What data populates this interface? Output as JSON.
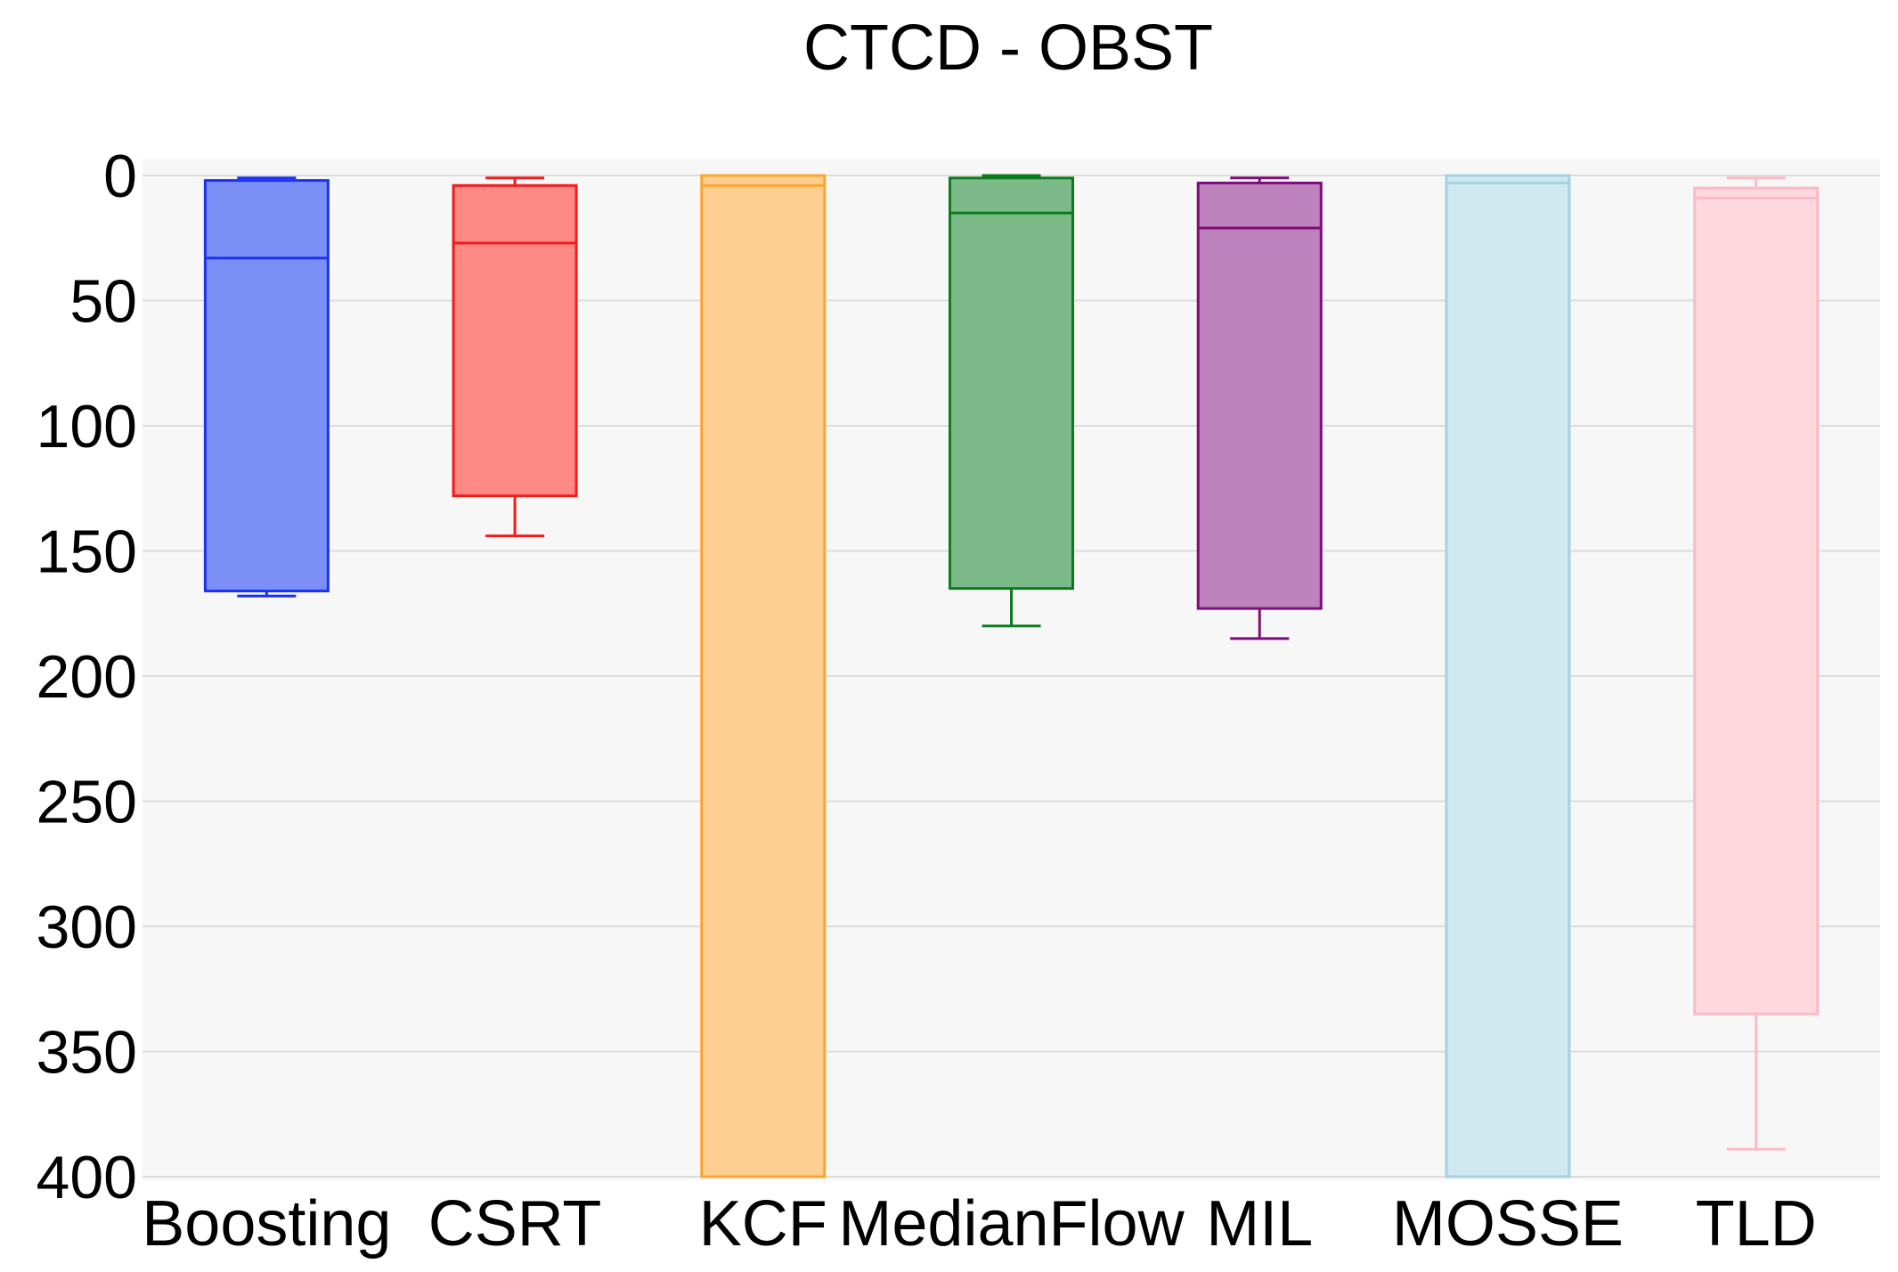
{
  "chart_data": {
    "type": "box",
    "title": "CTCD - OBST",
    "xlabel": "",
    "ylabel": "",
    "y_axis_inverted": true,
    "ylim": [
      0,
      400
    ],
    "yticks": [
      0,
      50,
      100,
      150,
      200,
      250,
      300,
      350,
      400
    ],
    "grid": "horizontal",
    "categories": [
      "Boosting",
      "CSRT",
      "KCF",
      "MedianFlow",
      "MIL",
      "MOSSE",
      "TLD"
    ],
    "boxes": [
      {
        "name": "Boosting",
        "whisker_low": 1,
        "q1": 2,
        "median": 33,
        "q3": 166,
        "whisker_high": 168,
        "fill": "#7B8FF7",
        "stroke": "#1A32F0"
      },
      {
        "name": "CSRT",
        "whisker_low": 1,
        "q1": 4,
        "median": 27,
        "q3": 128,
        "whisker_high": 144,
        "fill": "#FF8A85",
        "stroke": "#F21B1B"
      },
      {
        "name": "KCF",
        "whisker_low": 0,
        "q1": 0,
        "median": 4,
        "q3": 400,
        "whisker_high": 400,
        "fill": "#FECF91",
        "stroke": "#FBA431"
      },
      {
        "name": "MedianFlow",
        "whisker_low": 0,
        "q1": 1,
        "median": 15,
        "q3": 165,
        "whisker_high": 180,
        "fill": "#7CBA8A",
        "stroke": "#0E7A1E"
      },
      {
        "name": "MIL",
        "whisker_low": 1,
        "q1": 3,
        "median": 21,
        "q3": 173,
        "whisker_high": 185,
        "fill": "#BE83BC",
        "stroke": "#7D0E7B"
      },
      {
        "name": "MOSSE",
        "whisker_low": 0,
        "q1": 0,
        "median": 3,
        "q3": 400,
        "whisker_high": 400,
        "fill": "#D0E8EF",
        "stroke": "#A4D2E0"
      },
      {
        "name": "TLD",
        "whisker_low": 1,
        "q1": 5,
        "median": 9,
        "q3": 335,
        "whisker_high": 389,
        "fill": "#FED8DF",
        "stroke": "#FCBAC6"
      }
    ]
  }
}
